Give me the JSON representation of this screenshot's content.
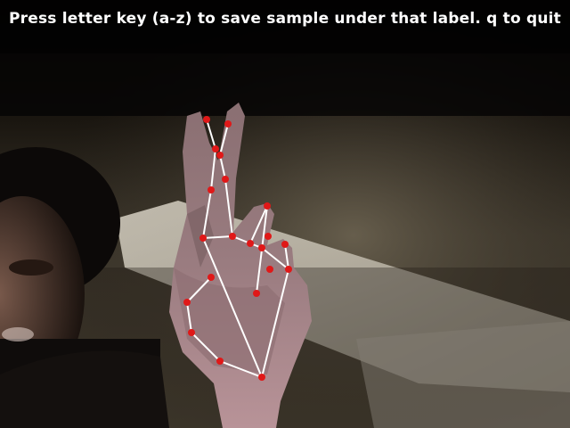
{
  "window": {
    "instruction_text": "Press letter key (a-z) to save sample under that label. q to quit"
  },
  "overlay": {
    "connection_color": "#ffffff",
    "landmark_color": "#e01818"
  }
}
